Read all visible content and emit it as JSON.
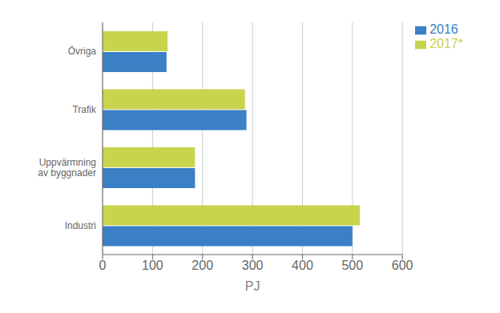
{
  "chart_data": {
    "type": "bar",
    "orientation": "horizontal",
    "categories": [
      "Industri",
      "Uppvärmning\nav byggnader",
      "Trafik",
      "Övriga"
    ],
    "series": [
      {
        "name": "2017*",
        "color": "#c8d44e",
        "values": [
          515,
          185,
          285,
          130
        ]
      },
      {
        "name": "2016",
        "color": "#3b7fc4",
        "values": [
          500,
          185,
          288,
          128
        ]
      }
    ],
    "xlabel": "PJ",
    "xlim": [
      0,
      600
    ],
    "xticks": [
      0,
      100,
      200,
      300,
      400,
      500,
      600
    ],
    "grid": true,
    "legend": "upper right"
  }
}
